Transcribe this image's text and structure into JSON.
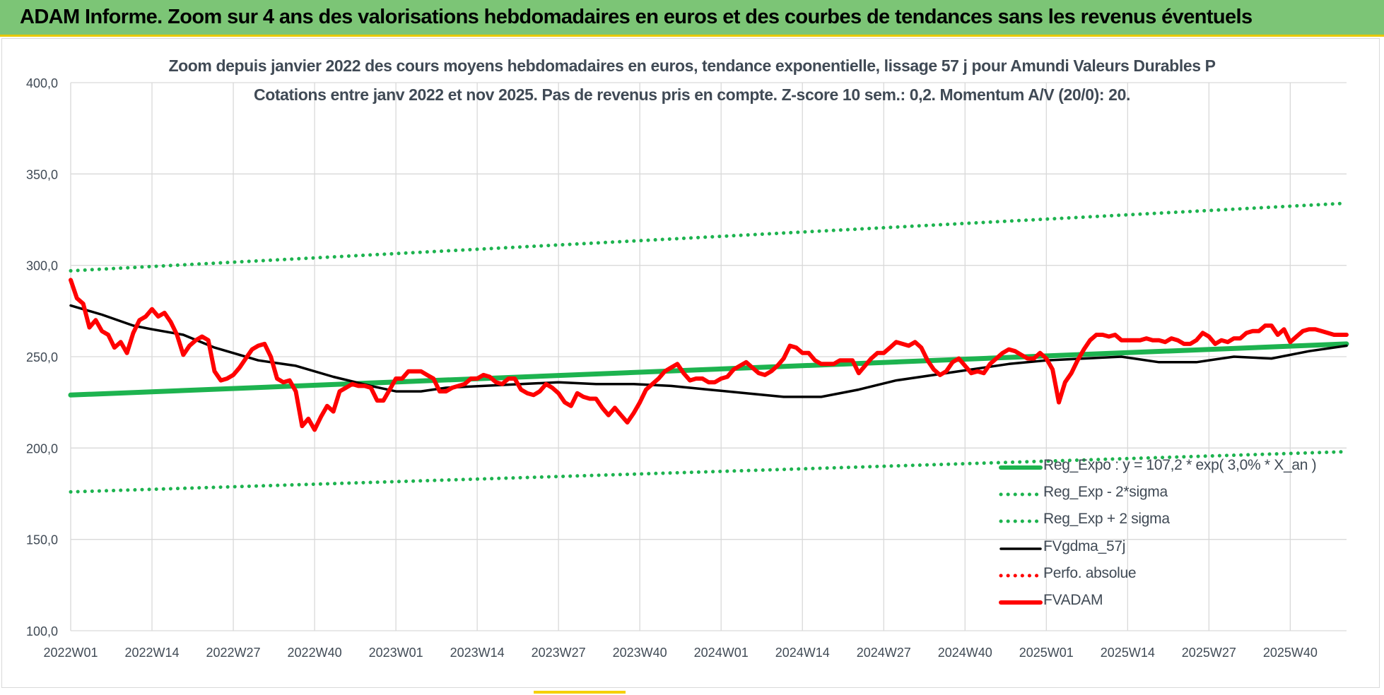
{
  "banner": {
    "title": "ADAM Informe. Zoom sur 4 ans des valorisations hebdomadaires en euros et des courbes de tendances sans les revenus éventuels"
  },
  "chart_data": {
    "type": "line",
    "title": "Zoom depuis janvier 2022 des cours moyens hebdomadaires en euros, tendance exponentielle, lissage 57 j pour Amundi Valeurs Durables P",
    "subtitle": "Cotations entre janv 2022 et nov 2025. Pas de revenus pris en compte. Z-score 10 sem.: 0,2. Momentum A/V (20/0): 20.",
    "xlabel": "",
    "ylabel": "",
    "ylim": [
      100,
      400
    ],
    "yticks": [
      "100,0",
      "150,0",
      "200,0",
      "250,0",
      "300,0",
      "350,0",
      "400,0"
    ],
    "xticks": [
      "2022W01",
      "2022W14",
      "2022W27",
      "2022W40",
      "2023W01",
      "2023W14",
      "2023W27",
      "2023W40",
      "2024W01",
      "2024W14",
      "2024W27",
      "2024W40",
      "2025W01",
      "2025W14",
      "2025W27",
      "2025W40"
    ],
    "x_count": 205,
    "grid": "vertical and horizontal",
    "legend_position": "bottom-right",
    "series": [
      {
        "name": "Reg_Expo : y = 107,2 * exp( 3,0% *  X_an )",
        "color": "#1db34f",
        "style": "thick-solid",
        "x": [
          0,
          204
        ],
        "values": [
          229,
          257
        ]
      },
      {
        "name": "Reg_Exp - 2*sigma",
        "color": "#1db34f",
        "style": "dotted",
        "x": [
          0,
          204
        ],
        "values": [
          176,
          198
        ]
      },
      {
        "name": "Reg_Exp + 2 sigma",
        "color": "#1db34f",
        "style": "dotted",
        "x": [
          0,
          204
        ],
        "values": [
          297,
          334
        ]
      },
      {
        "name": "FVgdma_57j",
        "color": "#000000",
        "style": "solid",
        "x": [
          0,
          5,
          10,
          13,
          18,
          23,
          30,
          36,
          42,
          48,
          52,
          56,
          60,
          66,
          72,
          78,
          84,
          90,
          96,
          102,
          108,
          114,
          120,
          126,
          132,
          138,
          144,
          150,
          156,
          162,
          168,
          174,
          180,
          186,
          192,
          198,
          204
        ],
        "values": [
          278,
          273,
          267,
          265,
          262,
          255,
          248,
          245,
          239,
          234,
          231,
          231,
          233,
          234,
          235,
          236,
          235,
          235,
          234,
          232,
          230,
          228,
          228,
          232,
          237,
          240,
          243,
          246,
          248,
          249,
          250,
          247,
          247,
          250,
          249,
          253,
          256
        ]
      },
      {
        "name": "Perfo. absolue",
        "color": "#ff0000",
        "style": "dotted",
        "x": [],
        "values": []
      },
      {
        "name": "FVADAM",
        "color": "#ff0000",
        "style": "thick-solid",
        "x": [
          0,
          1,
          2,
          3,
          4,
          5,
          6,
          7,
          8,
          9,
          10,
          11,
          12,
          13,
          14,
          15,
          16,
          17,
          18,
          19,
          20,
          21,
          22,
          23,
          24,
          25,
          26,
          27,
          28,
          29,
          30,
          31,
          32,
          33,
          34,
          35,
          36,
          37,
          38,
          39,
          40,
          41,
          42,
          43,
          44,
          45,
          46,
          47,
          48,
          49,
          50,
          51,
          52,
          53,
          54,
          55,
          56,
          57,
          58,
          59,
          60,
          61,
          62,
          63,
          64,
          65,
          66,
          67,
          68,
          69,
          70,
          71,
          72,
          73,
          74,
          75,
          76,
          77,
          78,
          79,
          80,
          81,
          82,
          83,
          84,
          85,
          86,
          87,
          88,
          89,
          90,
          91,
          92,
          93,
          94,
          95,
          96,
          97,
          98,
          99,
          100,
          101,
          102,
          103,
          104,
          105,
          106,
          107,
          108,
          109,
          110,
          111,
          112,
          113,
          114,
          115,
          116,
          117,
          118,
          119,
          120,
          121,
          122,
          123,
          124,
          125,
          126,
          127,
          128,
          129,
          130,
          131,
          132,
          133,
          134,
          135,
          136,
          137,
          138,
          139,
          140,
          141,
          142,
          143,
          144,
          145,
          146,
          147,
          148,
          149,
          150,
          151,
          152,
          153,
          154,
          155,
          156,
          157,
          158,
          159,
          160,
          161,
          162,
          163,
          164,
          165,
          166,
          167,
          168,
          169,
          170,
          171,
          172,
          173,
          174,
          175,
          176,
          177,
          178,
          179,
          180,
          181,
          182,
          183,
          184,
          185,
          186,
          187,
          188,
          189,
          190,
          191,
          192,
          193,
          194,
          195,
          196,
          197,
          198,
          199,
          200,
          201,
          202,
          203,
          204
        ],
        "values": [
          292,
          282,
          279,
          266,
          270,
          264,
          262,
          255,
          258,
          252,
          263,
          270,
          272,
          276,
          272,
          274,
          269,
          262,
          251,
          256,
          259,
          261,
          259,
          242,
          237,
          238,
          240,
          244,
          249,
          254,
          256,
          257,
          250,
          238,
          236,
          237,
          231,
          212,
          216,
          210,
          217,
          223,
          220,
          231,
          233,
          235,
          234,
          234,
          233,
          226,
          226,
          232,
          238,
          238,
          242,
          242,
          242,
          240,
          238,
          231,
          231,
          233,
          234,
          235,
          238,
          238,
          240,
          239,
          236,
          235,
          238,
          238,
          232,
          230,
          229,
          231,
          235,
          233,
          230,
          225,
          223,
          230,
          228,
          227,
          227,
          222,
          218,
          222,
          218,
          214,
          219,
          225,
          232,
          235,
          238,
          242,
          244,
          246,
          241,
          237,
          238,
          238,
          236,
          236,
          238,
          239,
          243,
          245,
          247,
          244,
          241,
          240,
          242,
          245,
          249,
          256,
          255,
          252,
          252,
          248,
          246,
          246,
          246,
          248,
          248,
          248,
          241,
          245,
          249,
          252,
          252,
          255,
          258,
          257,
          256,
          258,
          255,
          248,
          243,
          240,
          242,
          247,
          249,
          245,
          241,
          242,
          241,
          246,
          249,
          252,
          254,
          253,
          251,
          249,
          249,
          252,
          249,
          243,
          225,
          236,
          241,
          248,
          254,
          259,
          262,
          262,
          261,
          262,
          259,
          259,
          259,
          259,
          260,
          259,
          259,
          258,
          260,
          259,
          257,
          257,
          259,
          263,
          261,
          257,
          259,
          258,
          260,
          260,
          263,
          264,
          264,
          267,
          267,
          262,
          265,
          258,
          261,
          264,
          265,
          265,
          264,
          263,
          262,
          262,
          262
        ]
      }
    ]
  }
}
